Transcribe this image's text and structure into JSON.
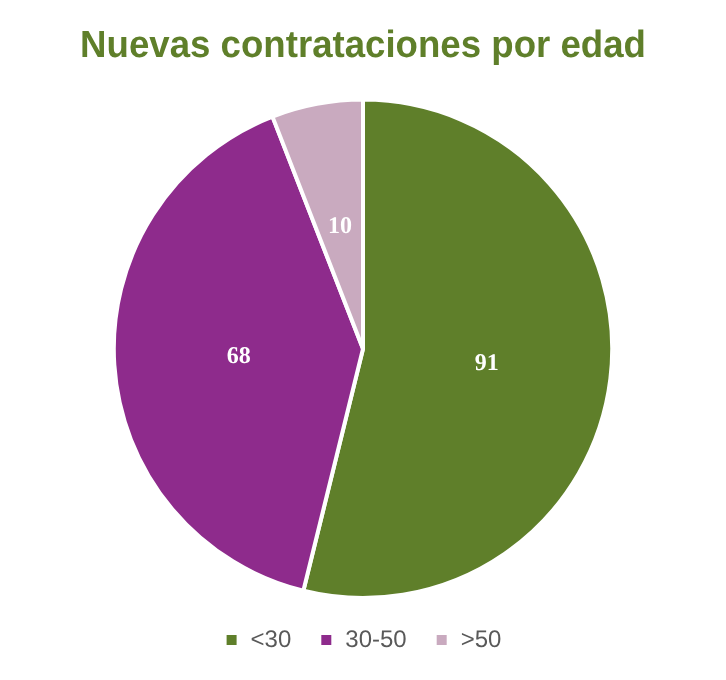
{
  "chart_data": {
    "type": "pie",
    "title": "Nuevas contrataciones por edad",
    "categories": [
      "<30",
      "30-50",
      ">50"
    ],
    "values": [
      91,
      68,
      10
    ],
    "colors": [
      "#5f7f2a",
      "#8e2b8c",
      "#c9aabf"
    ],
    "data_labels": true,
    "legend": "bottom"
  }
}
